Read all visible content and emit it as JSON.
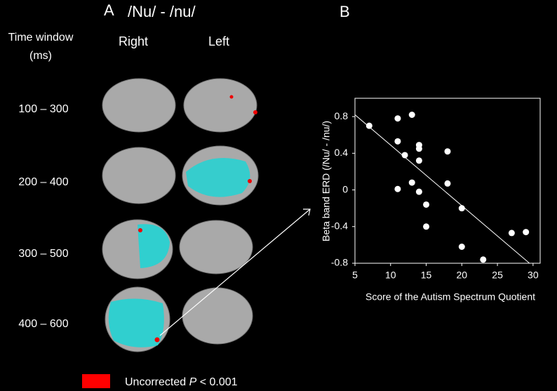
{
  "panel_a": {
    "label": "A",
    "title": "/Nu/ - /nu/",
    "time_header": [
      "Time window",
      "(ms)"
    ],
    "columns": [
      "Right",
      "Left"
    ],
    "rows": [
      "100 – 300",
      "200 – 400",
      "300 – 500",
      "400 – 600"
    ],
    "legend": {
      "prefix": "Uncorrected",
      "italic": "P",
      "suffix": "< 0.001",
      "color": "#ff0000"
    }
  },
  "chart_data": {
    "type": "scatter",
    "panel_label": "B",
    "x_label": "Score of the Autism Spectrum Quotient",
    "y_label": "Beta band ERD  (/Nu/ - /nu/)",
    "x": [
      7,
      11,
      11,
      11,
      12,
      13,
      13,
      14,
      14,
      14,
      14,
      15,
      15,
      18,
      18,
      20,
      20,
      23,
      27,
      29
    ],
    "y": [
      0.7,
      0.78,
      0.53,
      0.01,
      0.38,
      0.82,
      0.08,
      0.49,
      0.45,
      0.32,
      -0.02,
      -0.16,
      -0.4,
      0.42,
      0.07,
      -0.2,
      -0.62,
      -0.76,
      -0.47,
      -0.46
    ],
    "color": "#ffffff",
    "xlim": [
      5,
      31
    ],
    "xticks": [
      5,
      10,
      15,
      20,
      25,
      30
    ],
    "ylim": [
      -0.8,
      1.0
    ],
    "yticks": [
      -0.8,
      -0.4,
      0,
      0.4,
      0.8
    ],
    "trend_line": {
      "x": [
        5,
        29.5
      ],
      "y": [
        0.82,
        -0.8
      ]
    }
  }
}
